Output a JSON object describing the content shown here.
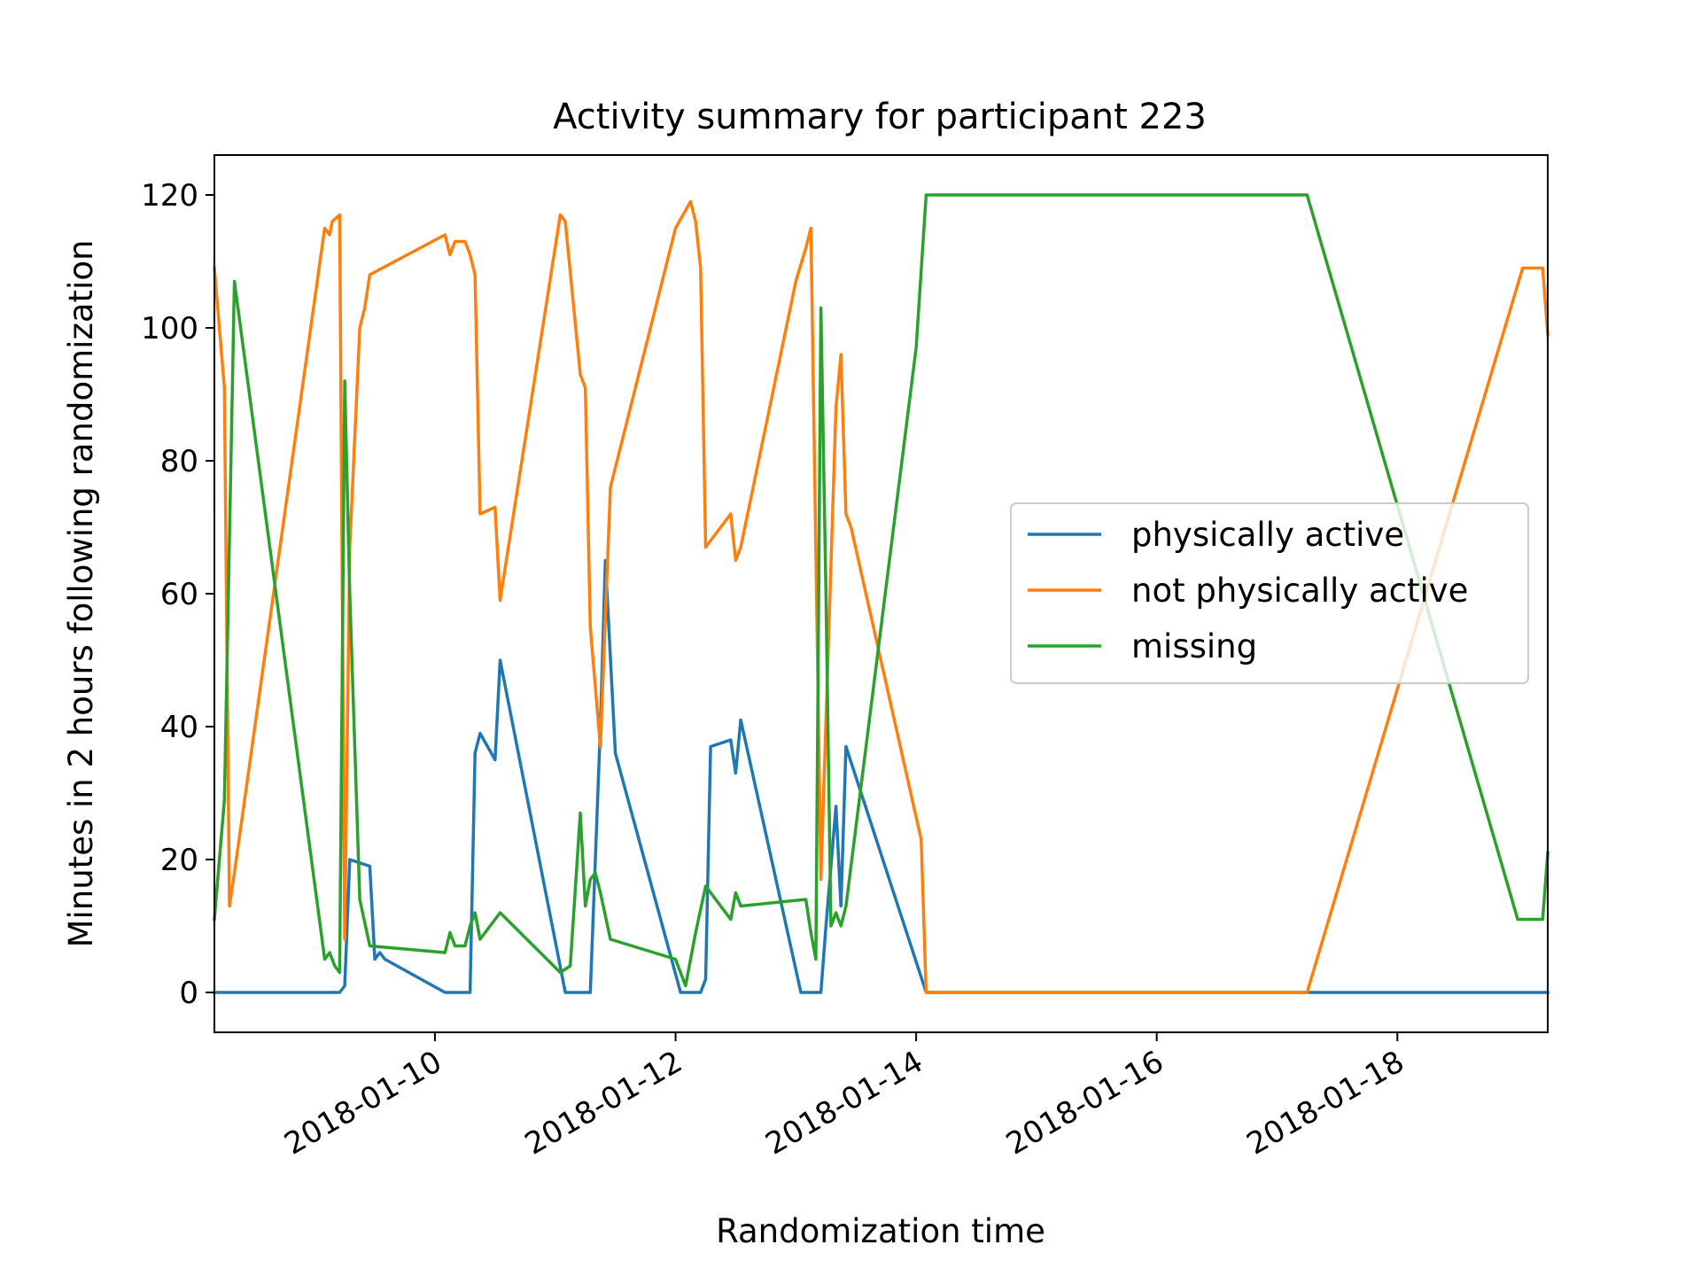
{
  "chart_data": {
    "type": "line",
    "title": "Activity summary for participant 223",
    "xlabel": "Randomization time",
    "ylabel": "Minutes in 2 hours following randomization",
    "xlim": [
      "2018-01-08 04:00",
      "2018-01-19 06:00"
    ],
    "ylim": [
      -6,
      126
    ],
    "x_ticks": [
      "2018-01-10",
      "2018-01-12",
      "2018-01-14",
      "2018-01-16",
      "2018-01-18"
    ],
    "y_ticks": [
      0,
      20,
      40,
      60,
      80,
      100,
      120
    ],
    "grid": false,
    "legend_position": "center-right",
    "series": [
      {
        "name": "physically active",
        "color": "#1f77b4",
        "points": [
          [
            "2018-01-08 04:00",
            0
          ],
          [
            "2018-01-08 08:00",
            0
          ],
          [
            "2018-01-09 05:00",
            0
          ],
          [
            "2018-01-09 06:00",
            1
          ],
          [
            "2018-01-09 07:00",
            20
          ],
          [
            "2018-01-09 11:00",
            19
          ],
          [
            "2018-01-09 12:00",
            5
          ],
          [
            "2018-01-09 13:00",
            6
          ],
          [
            "2018-01-09 14:00",
            5
          ],
          [
            "2018-01-10 02:00",
            0
          ],
          [
            "2018-01-10 07:00",
            0
          ],
          [
            "2018-01-10 08:00",
            36
          ],
          [
            "2018-01-10 09:00",
            39
          ],
          [
            "2018-01-10 12:00",
            35
          ],
          [
            "2018-01-10 13:00",
            50
          ],
          [
            "2018-01-11 02:00",
            0
          ],
          [
            "2018-01-11 07:00",
            0
          ],
          [
            "2018-01-11 09:00",
            40
          ],
          [
            "2018-01-11 10:00",
            65
          ],
          [
            "2018-01-11 12:00",
            36
          ],
          [
            "2018-01-12 01:00",
            0
          ],
          [
            "2018-01-12 05:00",
            0
          ],
          [
            "2018-01-12 06:00",
            2
          ],
          [
            "2018-01-12 07:00",
            37
          ],
          [
            "2018-01-12 11:00",
            38
          ],
          [
            "2018-01-12 12:00",
            33
          ],
          [
            "2018-01-12 13:00",
            41
          ],
          [
            "2018-01-13 01:00",
            0
          ],
          [
            "2018-01-13 05:00",
            0
          ],
          [
            "2018-01-13 06:00",
            10
          ],
          [
            "2018-01-13 08:00",
            28
          ],
          [
            "2018-01-13 09:00",
            13
          ],
          [
            "2018-01-13 10:00",
            37
          ],
          [
            "2018-01-14 02:00",
            0
          ],
          [
            "2018-01-15 12:00",
            0
          ],
          [
            "2018-01-17 06:00",
            0
          ],
          [
            "2018-01-19 06:00",
            0
          ]
        ]
      },
      {
        "name": "not physically active",
        "color": "#ff7f0e",
        "points": [
          [
            "2018-01-08 04:00",
            109
          ],
          [
            "2018-01-08 06:00",
            91
          ],
          [
            "2018-01-08 07:00",
            13
          ],
          [
            "2018-01-08 08:00",
            18
          ],
          [
            "2018-01-09 02:00",
            115
          ],
          [
            "2018-01-09 03:00",
            114
          ],
          [
            "2018-01-09 03:30",
            116
          ],
          [
            "2018-01-09 05:00",
            117
          ],
          [
            "2018-01-09 06:00",
            8
          ],
          [
            "2018-01-09 07:00",
            67
          ],
          [
            "2018-01-09 09:00",
            100
          ],
          [
            "2018-01-09 10:00",
            103
          ],
          [
            "2018-01-09 11:00",
            108
          ],
          [
            "2018-01-10 02:00",
            114
          ],
          [
            "2018-01-10 03:00",
            111
          ],
          [
            "2018-01-10 04:00",
            113
          ],
          [
            "2018-01-10 06:00",
            113
          ],
          [
            "2018-01-10 07:00",
            111
          ],
          [
            "2018-01-10 08:00",
            108
          ],
          [
            "2018-01-10 09:00",
            72
          ],
          [
            "2018-01-10 12:00",
            73
          ],
          [
            "2018-01-10 13:00",
            59
          ],
          [
            "2018-01-11 01:00",
            117
          ],
          [
            "2018-01-11 02:00",
            116
          ],
          [
            "2018-01-11 05:00",
            93
          ],
          [
            "2018-01-11 06:00",
            91
          ],
          [
            "2018-01-11 07:00",
            55
          ],
          [
            "2018-01-11 09:00",
            37
          ],
          [
            "2018-01-11 11:00",
            76
          ],
          [
            "2018-01-12 00:00",
            115
          ],
          [
            "2018-01-12 03:00",
            119
          ],
          [
            "2018-01-12 04:00",
            116
          ],
          [
            "2018-01-12 05:00",
            109
          ],
          [
            "2018-01-12 06:00",
            67
          ],
          [
            "2018-01-12 11:00",
            72
          ],
          [
            "2018-01-12 12:00",
            65
          ],
          [
            "2018-01-12 13:00",
            67
          ],
          [
            "2018-01-13 00:00",
            107
          ],
          [
            "2018-01-13 02:00",
            112
          ],
          [
            "2018-01-13 03:00",
            115
          ],
          [
            "2018-01-13 05:00",
            17
          ],
          [
            "2018-01-13 08:00",
            88
          ],
          [
            "2018-01-13 09:00",
            96
          ],
          [
            "2018-01-13 10:00",
            72
          ],
          [
            "2018-01-13 11:00",
            70
          ],
          [
            "2018-01-14 01:00",
            23
          ],
          [
            "2018-01-14 02:00",
            0
          ],
          [
            "2018-01-15 12:00",
            0
          ],
          [
            "2018-01-17 06:00",
            0
          ],
          [
            "2018-01-19 01:00",
            109
          ],
          [
            "2018-01-19 05:00",
            109
          ],
          [
            "2018-01-19 06:00",
            99
          ]
        ]
      },
      {
        "name": "missing",
        "color": "#2ca02c",
        "points": [
          [
            "2018-01-08 04:00",
            11
          ],
          [
            "2018-01-08 06:00",
            29
          ],
          [
            "2018-01-08 08:00",
            107
          ],
          [
            "2018-01-09 02:00",
            5
          ],
          [
            "2018-01-09 03:00",
            6
          ],
          [
            "2018-01-09 04:00",
            4
          ],
          [
            "2018-01-09 05:00",
            3
          ],
          [
            "2018-01-09 06:00",
            92
          ],
          [
            "2018-01-09 07:00",
            60
          ],
          [
            "2018-01-09 09:00",
            14
          ],
          [
            "2018-01-09 11:00",
            7
          ],
          [
            "2018-01-10 02:00",
            6
          ],
          [
            "2018-01-10 03:00",
            9
          ],
          [
            "2018-01-10 04:00",
            7
          ],
          [
            "2018-01-10 06:00",
            7
          ],
          [
            "2018-01-10 07:00",
            10
          ],
          [
            "2018-01-10 08:00",
            12
          ],
          [
            "2018-01-10 09:00",
            8
          ],
          [
            "2018-01-10 13:00",
            12
          ],
          [
            "2018-01-11 01:00",
            3
          ],
          [
            "2018-01-11 03:00",
            4
          ],
          [
            "2018-01-11 05:00",
            27
          ],
          [
            "2018-01-11 06:00",
            13
          ],
          [
            "2018-01-11 07:00",
            17
          ],
          [
            "2018-01-11 08:00",
            18
          ],
          [
            "2018-01-11 09:00",
            15
          ],
          [
            "2018-01-11 11:00",
            8
          ],
          [
            "2018-01-12 00:00",
            5
          ],
          [
            "2018-01-12 02:00",
            1
          ],
          [
            "2018-01-12 04:00",
            9
          ],
          [
            "2018-01-12 06:00",
            16
          ],
          [
            "2018-01-12 11:00",
            11
          ],
          [
            "2018-01-12 12:00",
            15
          ],
          [
            "2018-01-12 13:00",
            13
          ],
          [
            "2018-01-13 02:00",
            14
          ],
          [
            "2018-01-13 03:00",
            9
          ],
          [
            "2018-01-13 04:00",
            5
          ],
          [
            "2018-01-13 05:00",
            103
          ],
          [
            "2018-01-13 06:00",
            60
          ],
          [
            "2018-01-13 07:00",
            10
          ],
          [
            "2018-01-13 08:00",
            12
          ],
          [
            "2018-01-13 09:00",
            10
          ],
          [
            "2018-01-13 10:00",
            13
          ],
          [
            "2018-01-14 00:00",
            97
          ],
          [
            "2018-01-14 02:00",
            120
          ],
          [
            "2018-01-15 12:00",
            120
          ],
          [
            "2018-01-17 06:00",
            120
          ],
          [
            "2018-01-19 00:00",
            11
          ],
          [
            "2018-01-19 05:00",
            11
          ],
          [
            "2018-01-19 06:00",
            21
          ]
        ]
      }
    ]
  }
}
